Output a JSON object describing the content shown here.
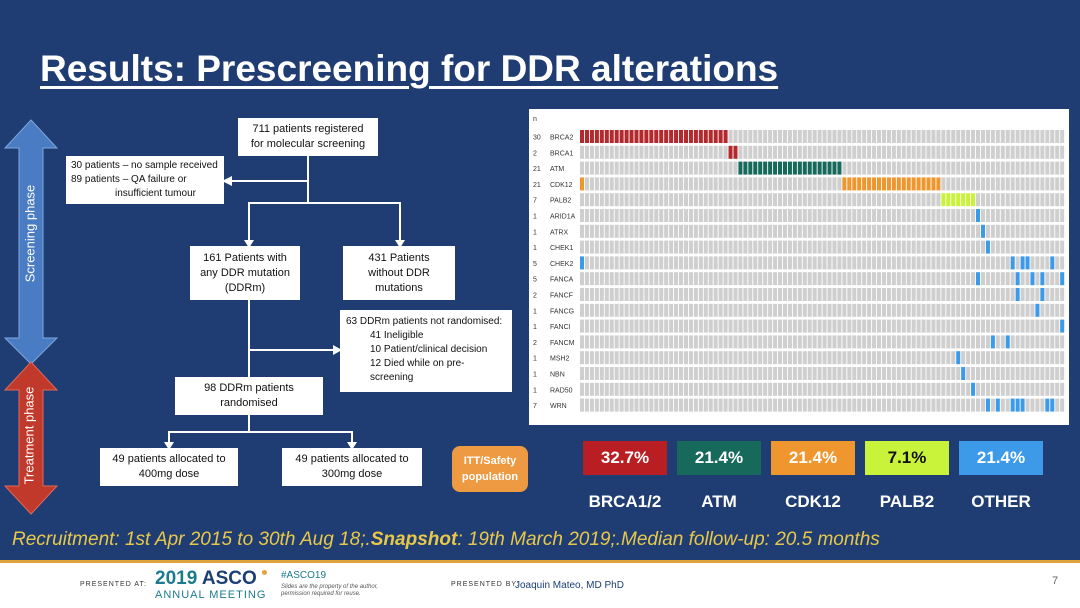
{
  "slide": {
    "title": "Results: Prescreening for DDR alterations",
    "page_number": "7"
  },
  "phases": {
    "screening": "Screening phase",
    "treatment": "Treatment phase"
  },
  "flow": {
    "registered": "711 patients registered for molecular screening",
    "excluded_1": "30 patients – no sample received",
    "excluded_2": "89 patients – QA failure or",
    "excluded_3": "insufficient tumour",
    "ddr_mutation": "161 Patients with any DDR mutation (DDRm)",
    "no_ddr": "431 Patients without DDR mutations",
    "not_randomised_title": "63 DDRm patients not randomised:",
    "not_randomised_1": "41 Ineligible",
    "not_randomised_2": "10 Patient/clinical decision",
    "not_randomised_3": "12 Died while on pre-",
    "not_randomised_4": "screening",
    "randomised": "98 DDRm patients randomised",
    "arm_400": "49 patients allocated to 400mg dose",
    "arm_300": "49 patients allocated to 300mg dose",
    "itt_badge": "ITT/Safety population"
  },
  "oncoprint": {
    "n_label": "n",
    "total_samples": 98,
    "genes": [
      {
        "name": "BRCA2",
        "n": "30",
        "color": "#b22a2e",
        "samples": [
          0,
          1,
          2,
          3,
          4,
          5,
          6,
          7,
          8,
          9,
          10,
          11,
          12,
          13,
          14,
          15,
          16,
          17,
          18,
          19,
          20,
          21,
          22,
          23,
          24,
          25,
          26,
          27,
          28,
          29
        ]
      },
      {
        "name": "BRCA1",
        "n": "2",
        "color": "#b22a2e",
        "samples": [
          30,
          31
        ]
      },
      {
        "name": "ATM",
        "n": "21",
        "color": "#17695c",
        "samples": [
          32,
          33,
          34,
          35,
          36,
          37,
          38,
          39,
          40,
          41,
          42,
          43,
          44,
          45,
          46,
          47,
          48,
          49,
          50,
          51,
          52
        ]
      },
      {
        "name": "CDK12",
        "n": "21",
        "color": "#f0962e",
        "samples": [
          0,
          53,
          54,
          55,
          56,
          57,
          58,
          59,
          60,
          61,
          62,
          63,
          64,
          65,
          66,
          67,
          68,
          69,
          70,
          71,
          72
        ]
      },
      {
        "name": "PALB2",
        "n": "7",
        "color": "#c9f23a",
        "samples": [
          73,
          74,
          75,
          76,
          77,
          78,
          79
        ]
      },
      {
        "name": "ARID1A",
        "n": "1",
        "color": "#3d9ae8",
        "samples": [
          80
        ]
      },
      {
        "name": "ATRX",
        "n": "1",
        "color": "#3d9ae8",
        "samples": [
          81
        ]
      },
      {
        "name": "CHEK1",
        "n": "1",
        "color": "#3d9ae8",
        "samples": [
          82
        ]
      },
      {
        "name": "CHEK2",
        "n": "5",
        "color": "#3d9ae8",
        "samples": [
          0,
          87,
          89,
          90,
          95
        ]
      },
      {
        "name": "FANCA",
        "n": "5",
        "color": "#3d9ae8",
        "samples": [
          80,
          88,
          91,
          93,
          97
        ]
      },
      {
        "name": "FANCF",
        "n": "2",
        "color": "#3d9ae8",
        "samples": [
          88,
          93
        ]
      },
      {
        "name": "FANCG",
        "n": "1",
        "color": "#3d9ae8",
        "samples": [
          92
        ]
      },
      {
        "name": "FANCI",
        "n": "1",
        "color": "#3d9ae8",
        "samples": [
          97
        ]
      },
      {
        "name": "FANCM",
        "n": "2",
        "color": "#3d9ae8",
        "samples": [
          83,
          86
        ]
      },
      {
        "name": "MSH2",
        "n": "1",
        "color": "#3d9ae8",
        "samples": [
          76
        ]
      },
      {
        "name": "NBN",
        "n": "1",
        "color": "#3d9ae8",
        "samples": [
          77
        ]
      },
      {
        "name": "RAD50",
        "n": "1",
        "color": "#3d9ae8",
        "samples": [
          79
        ]
      },
      {
        "name": "WRN",
        "n": "7",
        "color": "#3d9ae8",
        "samples": [
          82,
          84,
          87,
          88,
          89,
          94,
          95
        ]
      }
    ]
  },
  "summary": [
    {
      "pct": "32.7%",
      "label": "BRCA1/2",
      "bg": "#b81e22",
      "fg": "#ffffff"
    },
    {
      "pct": "21.4%",
      "label": "ATM",
      "bg": "#17695c",
      "fg": "#ffffff"
    },
    {
      "pct": "21.4%",
      "label": "CDK12",
      "bg": "#f0962e",
      "fg": "#ffffff"
    },
    {
      "pct": "7.1%",
      "label": "PALB2",
      "bg": "#c9f23a",
      "fg": "#111111"
    },
    {
      "pct": "21.4%",
      "label": "OTHER",
      "bg": "#3d9ae8",
      "fg": "#ffffff"
    }
  ],
  "footnote": "Recruitment: 1st Apr 2015 to 30th Aug 18;.Snapshot: 19th March 2019;.Median follow-up: 20.5 months",
  "footer": {
    "presented_at": "PRESENTED AT:",
    "meeting_year": "2019",
    "meeting_name": "ASCO",
    "meeting_sub": "ANNUAL MEETING",
    "hashtag": "#ASCO19",
    "disclaimer_1": "Slides are the property of the author,",
    "disclaimer_2": "permission required for reuse.",
    "presented_by": "PRESENTED BY:",
    "presenter": "Joaquin Mateo, MD PhD"
  }
}
